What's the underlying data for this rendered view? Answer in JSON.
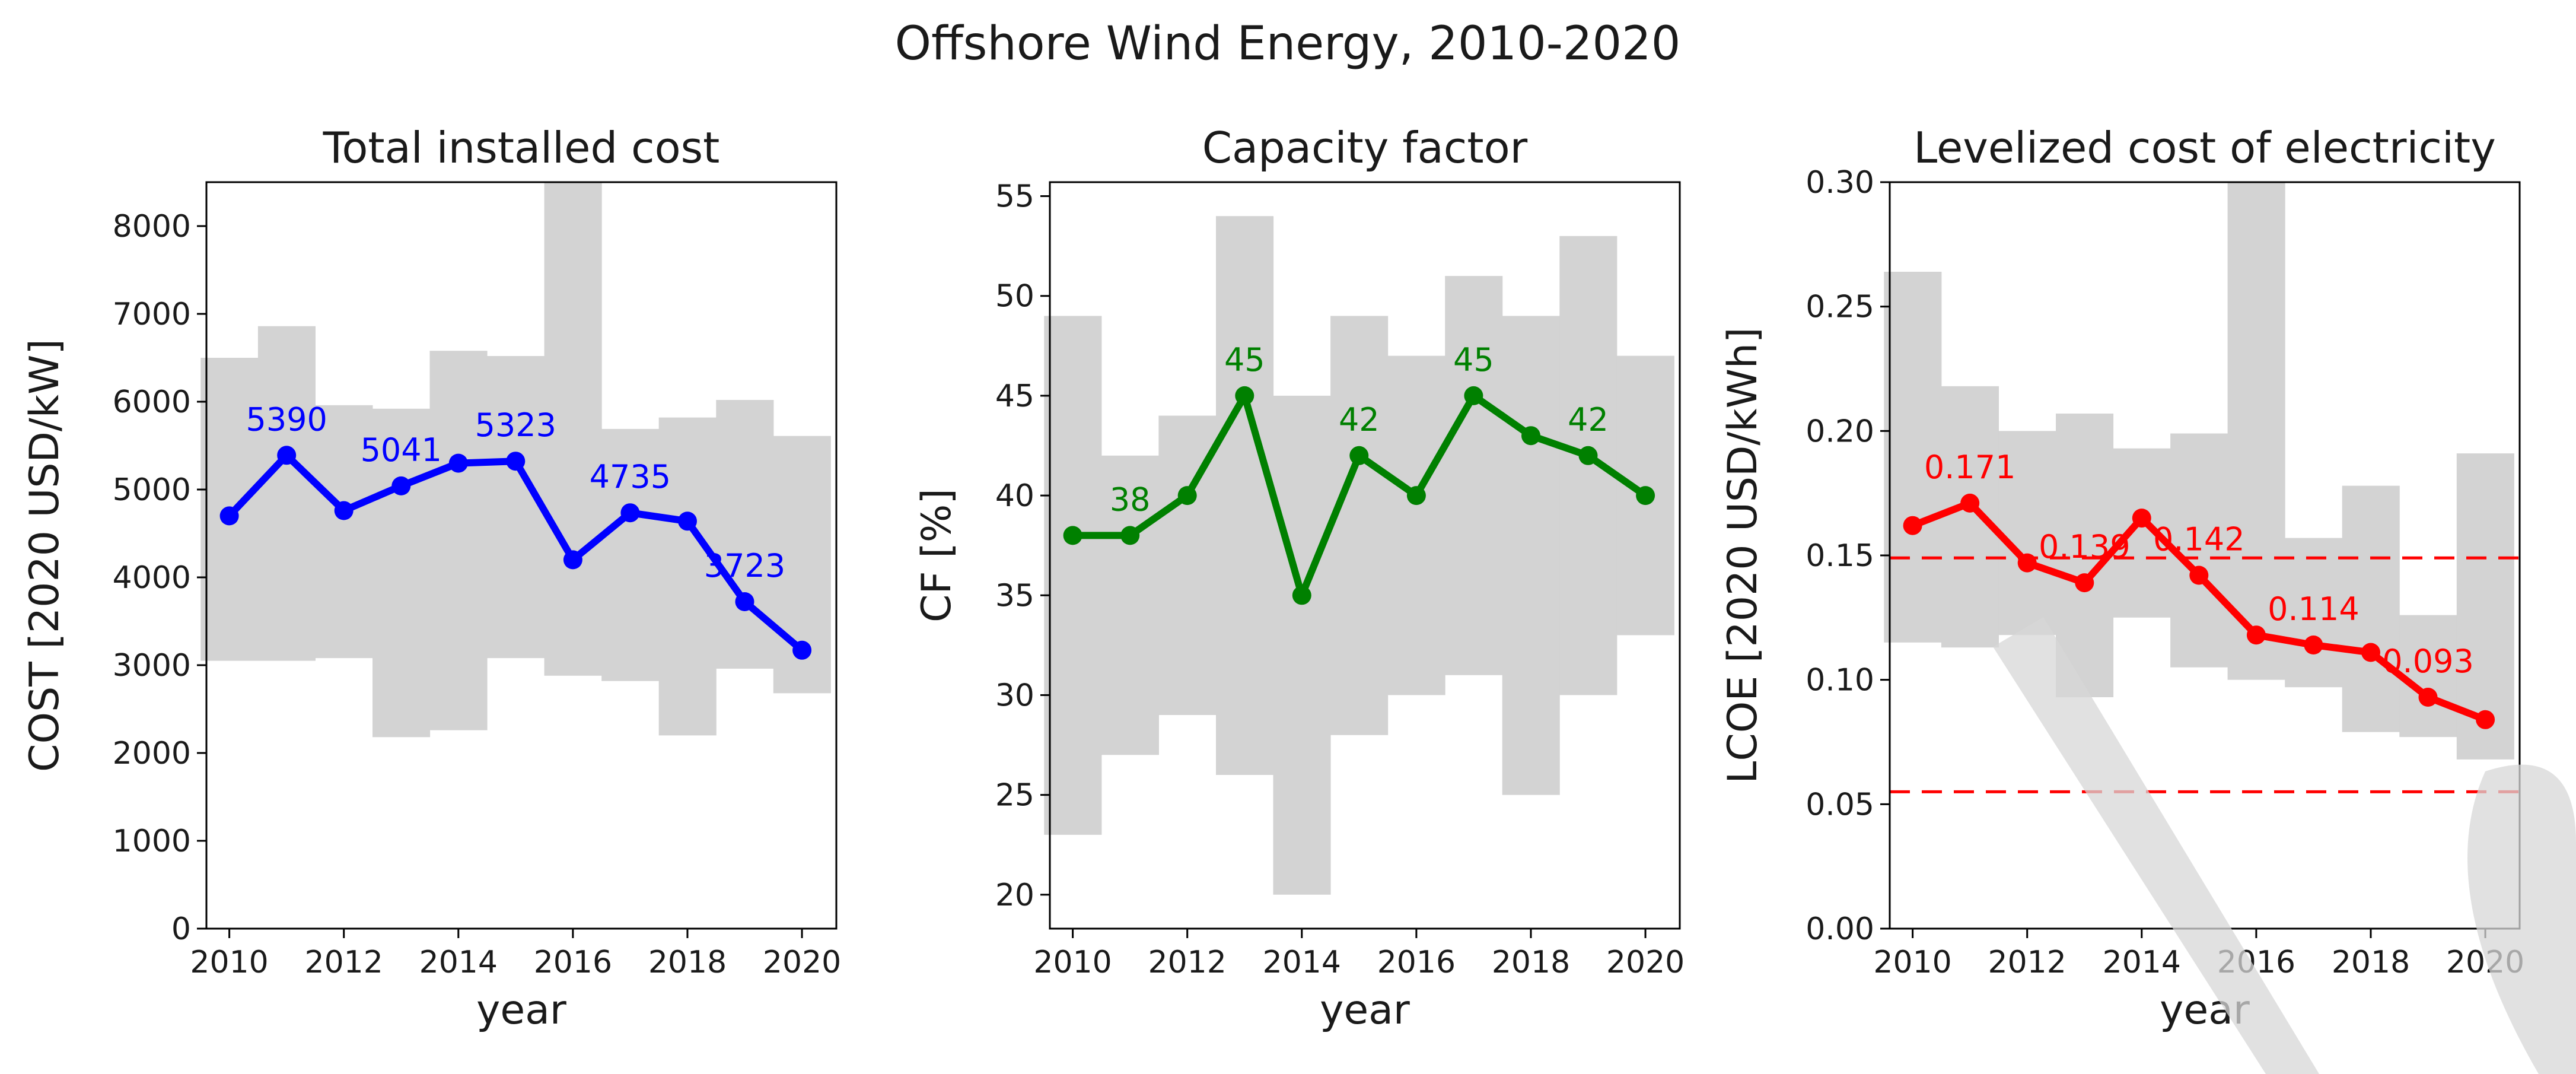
{
  "suptitle": "Offshore Wind Energy, 2010-2020",
  "chart_data": [
    {
      "type": "line",
      "title": "Total installed cost",
      "xlabel": "year",
      "ylabel": "COST [2020 USD/kW]",
      "color": "#0000ff",
      "x": [
        2010,
        2011,
        2012,
        2013,
        2014,
        2015,
        2016,
        2017,
        2018,
        2019,
        2020
      ],
      "y": [
        4700,
        5390,
        4760,
        5041,
        5300,
        5323,
        4200,
        4735,
        4640,
        3723,
        3170
      ],
      "band_low": [
        3050,
        3050,
        3080,
        2180,
        2260,
        3080,
        2880,
        2820,
        2200,
        2960,
        2680
      ],
      "band_high": [
        6500,
        6860,
        5960,
        5920,
        6580,
        6520,
        8500,
        5690,
        5820,
        6020,
        5610
      ],
      "data_labels": [
        {
          "x": 2011,
          "text": "5390"
        },
        {
          "x": 2013,
          "text": "5041"
        },
        {
          "x": 2015,
          "text": "5323"
        },
        {
          "x": 2017,
          "text": "4735"
        },
        {
          "x": 2019,
          "text": "3723"
        }
      ],
      "ylim": [
        0,
        8500
      ],
      "yticks": [
        0,
        1000,
        2000,
        3000,
        4000,
        5000,
        6000,
        7000,
        8000
      ],
      "xlim": [
        2009.6,
        2020.6
      ],
      "xticks": [
        2010,
        2012,
        2014,
        2016,
        2018,
        2020
      ]
    },
    {
      "type": "line",
      "title": "Capacity factor",
      "xlabel": "year",
      "ylabel": "CF [%]",
      "color": "#008000",
      "x": [
        2010,
        2011,
        2012,
        2013,
        2014,
        2015,
        2016,
        2017,
        2018,
        2019,
        2020
      ],
      "y": [
        38,
        38,
        40,
        45,
        35,
        42,
        40,
        45,
        43,
        42,
        40
      ],
      "band_low": [
        23,
        27,
        29,
        26,
        20,
        28,
        30,
        31,
        25,
        30,
        33
      ],
      "band_high": [
        49,
        42,
        44,
        54,
        45,
        49,
        47,
        51,
        49,
        53,
        47
      ],
      "data_labels": [
        {
          "x": 2011,
          "text": "38"
        },
        {
          "x": 2013,
          "text": "45"
        },
        {
          "x": 2015,
          "text": "42"
        },
        {
          "x": 2017,
          "text": "45"
        },
        {
          "x": 2019,
          "text": "42"
        }
      ],
      "ylim": [
        18.3,
        55.7
      ],
      "yticks": [
        20,
        25,
        30,
        35,
        40,
        45,
        50,
        55
      ],
      "xlim": [
        2009.6,
        2020.6
      ],
      "xticks": [
        2010,
        2012,
        2014,
        2016,
        2018,
        2020
      ]
    },
    {
      "type": "line",
      "title": "Levelized cost of electricity",
      "xlabel": "year",
      "ylabel": "LCOE [2020 USD/kWh]",
      "color": "#ff0000",
      "x": [
        2010,
        2011,
        2012,
        2013,
        2014,
        2015,
        2016,
        2017,
        2018,
        2019,
        2020
      ],
      "y": [
        0.162,
        0.171,
        0.147,
        0.139,
        0.165,
        0.142,
        0.118,
        0.114,
        0.111,
        0.093,
        0.084
      ],
      "band_low": [
        0.115,
        0.113,
        0.118,
        0.093,
        0.125,
        0.105,
        0.1,
        0.097,
        0.079,
        0.077,
        0.068
      ],
      "band_high": [
        0.264,
        0.218,
        0.2,
        0.207,
        0.193,
        0.199,
        0.3,
        0.157,
        0.178,
        0.126,
        0.191
      ],
      "data_labels": [
        {
          "x": 2011,
          "text": "0.171"
        },
        {
          "x": 2013,
          "text": "0.139"
        },
        {
          "x": 2015,
          "text": "0.142"
        },
        {
          "x": 2017,
          "text": "0.114"
        },
        {
          "x": 2019,
          "text": "0.093"
        }
      ],
      "reference_lines": [
        0.149,
        0.055
      ],
      "ylim": [
        0,
        0.3
      ],
      "yticks": [
        0.0,
        0.05,
        0.1,
        0.15,
        0.2,
        0.25,
        0.3
      ],
      "ytick_decimals": 2,
      "xlim": [
        2009.6,
        2020.6
      ],
      "xticks": [
        2010,
        2012,
        2014,
        2016,
        2018,
        2020
      ]
    }
  ]
}
